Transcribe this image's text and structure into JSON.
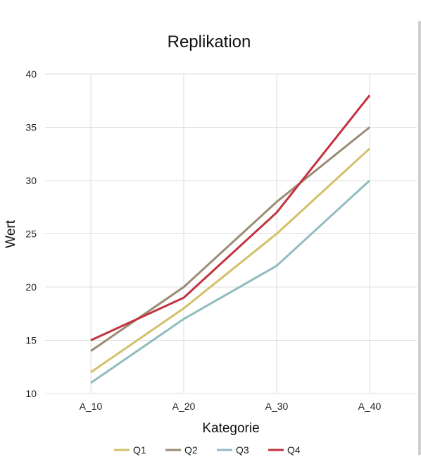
{
  "chart_data": {
    "type": "line",
    "title": "Replikation",
    "xlabel": "Kategorie",
    "ylabel": "Wert",
    "categories": [
      "A_10",
      "A_20",
      "A_30",
      "A_40"
    ],
    "ylim": [
      10,
      40
    ],
    "yticks": [
      10,
      15,
      20,
      25,
      30,
      35,
      40
    ],
    "grid": true,
    "legend_position": "bottom",
    "series": [
      {
        "name": "Q1",
        "color": "#d4c06a",
        "values": [
          12,
          18,
          25,
          33
        ]
      },
      {
        "name": "Q2",
        "color": "#9a8c76",
        "values": [
          14,
          20,
          28,
          35
        ]
      },
      {
        "name": "Q3",
        "color": "#90bcc0",
        "values": [
          11,
          17,
          22,
          30
        ]
      },
      {
        "name": "Q4",
        "color": "#c2333f",
        "values": [
          15,
          19,
          27,
          38
        ]
      }
    ]
  }
}
